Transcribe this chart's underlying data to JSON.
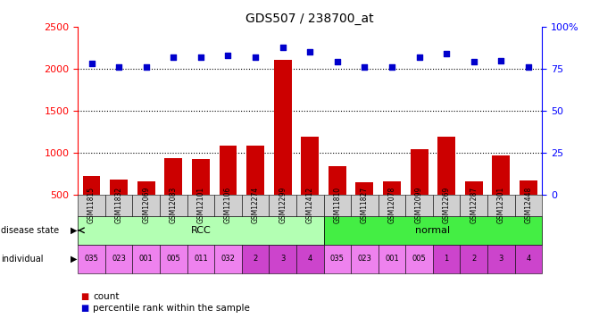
{
  "title": "GDS507 / 238700_at",
  "samples": [
    "GSM11815",
    "GSM11832",
    "GSM12069",
    "GSM12083",
    "GSM12101",
    "GSM12106",
    "GSM12274",
    "GSM12299",
    "GSM12412",
    "GSM11810",
    "GSM11827",
    "GSM12078",
    "GSM12099",
    "GSM12269",
    "GSM12287",
    "GSM12301",
    "GSM12448"
  ],
  "counts": [
    720,
    680,
    650,
    930,
    920,
    1080,
    1080,
    2110,
    1190,
    840,
    640,
    650,
    1040,
    1190,
    650,
    960,
    670
  ],
  "percentile_ranks": [
    78,
    76,
    76,
    82,
    82,
    83,
    82,
    88,
    85,
    79,
    76,
    76,
    82,
    84,
    79,
    80,
    76
  ],
  "disease_state_groups": [
    {
      "label": "RCC",
      "start": 0,
      "end": 9,
      "color": "#b3ffb3"
    },
    {
      "label": "normal",
      "start": 9,
      "end": 17,
      "color": "#44ee44"
    }
  ],
  "individual_labels": [
    "035",
    "023",
    "001",
    "005",
    "011",
    "032",
    "2",
    "3",
    "4",
    "035",
    "023",
    "001",
    "005",
    "1",
    "2",
    "3",
    "4"
  ],
  "individual_colors_light": "#ee82ee",
  "individual_colors_dark": "#cc44cc",
  "individual_dark_indices": [
    6,
    7,
    8,
    13,
    14,
    15,
    16
  ],
  "bar_color": "#cc0000",
  "scatter_color": "#0000cc",
  "ylim_left": [
    500,
    2500
  ],
  "ylim_right": [
    0,
    100
  ],
  "yticks_left": [
    500,
    1000,
    1500,
    2000,
    2500
  ],
  "yticks_right": [
    0,
    25,
    50,
    75,
    100
  ],
  "ytick_right_labels": [
    "0",
    "25",
    "50",
    "75",
    "100%"
  ],
  "grid_values": [
    1000,
    1500,
    2000
  ],
  "count_base": 500
}
